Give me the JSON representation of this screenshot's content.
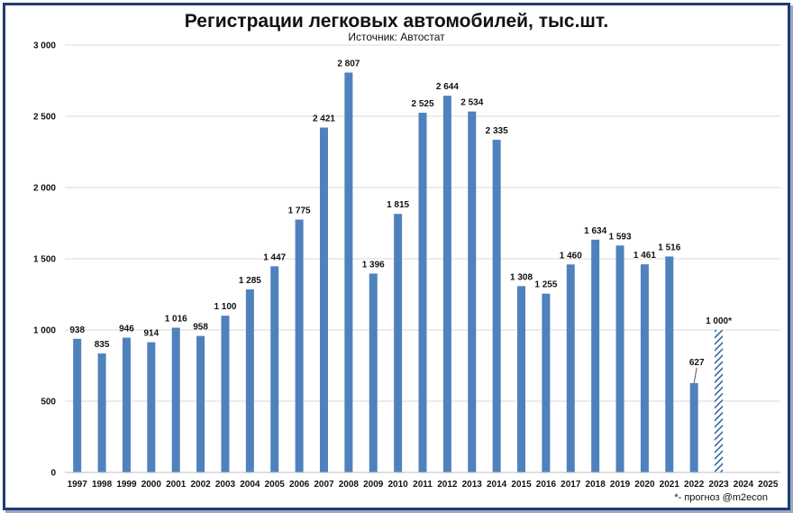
{
  "chart_data": {
    "type": "bar",
    "title": "Регистрации легковых автомобилей, тыс.шт.",
    "subtitle": "Источник: Автостат",
    "footnote": "*- прогноз @m2econ",
    "categories": [
      "1997",
      "1998",
      "1999",
      "2000",
      "2001",
      "2002",
      "2003",
      "2004",
      "2005",
      "2006",
      "2007",
      "2008",
      "2009",
      "2010",
      "2011",
      "2012",
      "2013",
      "2014",
      "2015",
      "2016",
      "2017",
      "2018",
      "2019",
      "2020",
      "2021",
      "2022",
      "2023",
      "2024",
      "2025"
    ],
    "values": [
      938,
      835,
      946,
      914,
      1016,
      958,
      1100,
      1285,
      1447,
      1775,
      2421,
      2807,
      1396,
      1815,
      2525,
      2644,
      2534,
      2335,
      1308,
      1255,
      1460,
      1634,
      1593,
      1461,
      1516,
      627,
      1000,
      null,
      null
    ],
    "value_labels": [
      "938",
      "835",
      "946",
      "914",
      "1 016",
      "958",
      "1 100",
      "1 285",
      "1 447",
      "1 775",
      "2 421",
      "2 807",
      "1 396",
      "1 815",
      "2 525",
      "2 644",
      "2 534",
      "2 335",
      "1 308",
      "1 255",
      "1 460",
      "1 634",
      "1 593",
      "1 461",
      "1 516",
      "627",
      "1 000*",
      "",
      ""
    ],
    "forecast": [
      false,
      false,
      false,
      false,
      false,
      false,
      false,
      false,
      false,
      false,
      false,
      false,
      false,
      false,
      false,
      false,
      false,
      false,
      false,
      false,
      false,
      false,
      false,
      false,
      false,
      false,
      true,
      false,
      false
    ],
    "ylim": [
      0,
      3000
    ],
    "yticks": [
      0,
      500,
      1000,
      1500,
      2000,
      2500,
      3000
    ],
    "ytick_labels": [
      "0",
      "500",
      "1 000",
      "1 500",
      "2 000",
      "2 500",
      "3 000"
    ],
    "grid": true,
    "colors": {
      "bar": "#4f81bd",
      "forecast": "#2e5f9e",
      "grid": "#d9d9d9",
      "frame": "#1f3c73"
    }
  }
}
